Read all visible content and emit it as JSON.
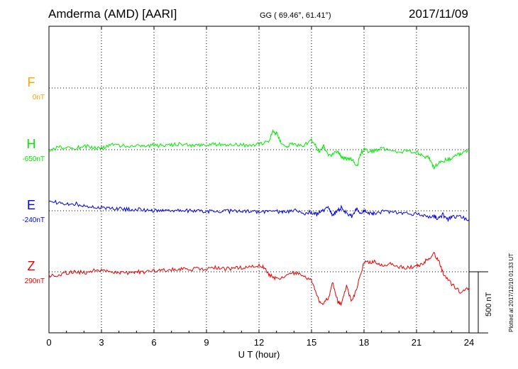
{
  "header": {
    "station": "Amderma (AMD)  [AARI]",
    "coords": "GG ( 69.46°,  61.41°)",
    "date": "2017/11/09"
  },
  "plotted_note": "Plotted at 2017/12/10 01:33 UT",
  "scale_label": "500 nT",
  "chart_data": {
    "type": "line",
    "xlabel": "U T (hour)",
    "xlim": [
      0,
      24
    ],
    "xticks": [
      0,
      3,
      6,
      9,
      12,
      15,
      18,
      21,
      24
    ],
    "xtick_labels": [
      "0",
      "3",
      "6",
      "9",
      "12",
      "15",
      "18",
      "21",
      "24"
    ],
    "grid": true,
    "scale_bar_nT": 500,
    "channels": [
      {
        "name": "F",
        "baseline": "0nT",
        "color": "#FFA500",
        "values": []
      },
      {
        "name": "H",
        "baseline": "-650nT",
        "color": "#00EE00",
        "x": [
          0,
          0.5,
          1,
          1.5,
          2,
          2.5,
          3,
          3.5,
          4,
          4.5,
          5,
          5.5,
          6,
          6.5,
          7,
          7.5,
          8,
          8.5,
          9,
          9.5,
          10,
          10.5,
          11,
          11.5,
          12,
          12.5,
          12.8,
          13,
          13.3,
          13.6,
          14,
          14.5,
          15,
          15.3,
          15.5,
          15.7,
          16,
          16.2,
          16.5,
          16.7,
          17,
          17.3,
          17.6,
          17.8,
          18,
          18.3,
          18.6,
          19,
          19.5,
          20,
          20.5,
          21,
          21.3,
          21.7,
          22,
          22.3,
          22.7,
          23,
          23.3,
          23.6,
          24
        ],
        "values": [
          0,
          20,
          30,
          10,
          40,
          20,
          10,
          50,
          40,
          35,
          50,
          40,
          45,
          40,
          50,
          60,
          40,
          50,
          45,
          55,
          50,
          60,
          50,
          40,
          60,
          80,
          180,
          160,
          60,
          40,
          60,
          40,
          100,
          20,
          -20,
          40,
          -60,
          -50,
          -10,
          -80,
          -90,
          -100,
          -160,
          -50,
          10,
          -20,
          -10,
          10,
          -10,
          -20,
          -10,
          -20,
          -60,
          -80,
          -180,
          -130,
          -100,
          -90,
          -60,
          -30,
          0
        ]
      },
      {
        "name": "E",
        "baseline": "-240nT",
        "color": "#0000EE",
        "x": [
          0,
          0.5,
          1,
          1.5,
          2,
          2.5,
          3,
          3.5,
          4,
          4.5,
          5,
          5.5,
          6,
          6.5,
          7,
          7.5,
          8,
          8.5,
          9,
          9.5,
          10,
          10.5,
          11,
          11.5,
          12,
          12.5,
          13,
          13.3,
          13.6,
          14,
          14.5,
          15,
          15.3,
          15.6,
          16,
          16.2,
          16.4,
          16.7,
          17,
          17.3,
          17.6,
          17.8,
          18,
          18.3,
          18.6,
          19,
          19.5,
          20,
          20.5,
          21,
          21.5,
          22,
          22.2,
          22.5,
          22.8,
          23,
          23.5,
          24
        ],
        "values": [
          100,
          80,
          60,
          70,
          50,
          40,
          30,
          25,
          20,
          15,
          15,
          5,
          0,
          5,
          0,
          -5,
          0,
          5,
          -5,
          0,
          -5,
          -5,
          0,
          -5,
          -10,
          -15,
          -10,
          -5,
          -10,
          10,
          -30,
          -10,
          -40,
          0,
          30,
          -60,
          -10,
          30,
          -20,
          -60,
          30,
          -30,
          0,
          -20,
          -30,
          -10,
          -10,
          -20,
          -30,
          -30,
          -60,
          -50,
          -80,
          -40,
          -90,
          -60,
          -60,
          -90
        ]
      },
      {
        "name": "Z",
        "baseline": "290nT",
        "color": "#EE0000",
        "x": [
          0,
          0.5,
          1,
          1.5,
          2,
          2.5,
          3,
          3.5,
          4,
          4.5,
          5,
          5.5,
          6,
          6.5,
          7,
          7.5,
          8,
          8.5,
          9,
          9.5,
          10,
          10.5,
          11,
          11.5,
          12,
          12.3,
          12.6,
          13,
          13.5,
          14,
          14.5,
          15,
          15.3,
          15.6,
          16,
          16.2,
          16.5,
          16.7,
          17,
          17.3,
          17.6,
          18,
          18.3,
          18.6,
          19,
          19.5,
          20,
          20.5,
          21,
          21.3,
          21.6,
          22,
          22.3,
          22.6,
          23,
          23.5,
          24
        ],
        "values": [
          -40,
          -30,
          -10,
          0,
          -10,
          10,
          20,
          10,
          -10,
          -10,
          0,
          0,
          10,
          20,
          20,
          30,
          20,
          30,
          30,
          40,
          30,
          30,
          40,
          50,
          60,
          40,
          -30,
          -70,
          -40,
          -10,
          -40,
          -80,
          -250,
          -330,
          -250,
          -110,
          -300,
          -330,
          -150,
          -300,
          -160,
          100,
          90,
          110,
          60,
          80,
          50,
          40,
          60,
          80,
          120,
          180,
          100,
          -50,
          -120,
          -200,
          -160
        ]
      }
    ]
  }
}
